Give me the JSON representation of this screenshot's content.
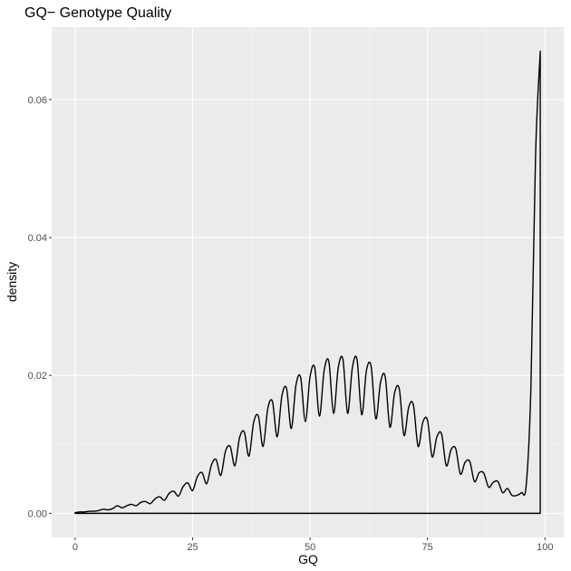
{
  "chart_data": {
    "type": "area",
    "title": "GQ− Genotype Quality",
    "xlabel": "GQ",
    "ylabel": "density",
    "xlim": [
      -5,
      104
    ],
    "ylim": [
      -0.0035,
      0.0705
    ],
    "x_ticks": [
      0,
      25,
      50,
      75,
      100
    ],
    "x_tick_labels": [
      "0",
      "25",
      "50",
      "75",
      "100"
    ],
    "y_ticks": [
      0.0,
      0.02,
      0.04,
      0.06
    ],
    "y_tick_labels": [
      "0.00",
      "0.02",
      "0.04",
      "0.06"
    ],
    "grid": true,
    "legend": "none",
    "series": [
      {
        "values_note": "",
        "x": [
          0,
          1,
          2,
          3,
          4,
          5,
          6,
          7,
          8,
          9,
          10,
          11,
          12,
          13,
          14,
          15,
          16,
          17,
          18,
          19,
          20,
          21,
          22,
          23,
          24,
          25,
          26,
          27,
          28,
          29,
          30,
          31,
          32,
          33,
          34,
          35,
          36,
          37,
          38,
          39,
          40,
          41,
          42,
          43,
          44,
          45,
          46,
          47,
          48,
          49,
          50,
          51,
          52,
          53,
          54,
          55,
          56,
          57,
          58,
          59,
          60,
          61,
          62,
          63,
          64,
          65,
          66,
          67,
          68,
          69,
          70,
          71,
          72,
          73,
          74,
          75,
          76,
          77,
          78,
          79,
          80,
          81,
          82,
          83,
          84,
          85,
          86,
          87,
          88,
          89,
          90,
          91,
          92,
          93,
          94,
          95,
          96,
          97,
          98,
          99
        ],
        "y": [
          0.0001,
          0.0002,
          0.0002,
          0.0003,
          0.0003,
          0.0004,
          0.0006,
          0.0005,
          0.0007,
          0.0011,
          0.0008,
          0.0011,
          0.0013,
          0.0011,
          0.0016,
          0.0017,
          0.0014,
          0.0021,
          0.0024,
          0.0019,
          0.0029,
          0.0032,
          0.0025,
          0.0039,
          0.0044,
          0.0033,
          0.0053,
          0.0059,
          0.0043,
          0.007,
          0.0078,
          0.0055,
          0.009,
          0.0097,
          0.0069,
          0.011,
          0.0118,
          0.0083,
          0.0132,
          0.0141,
          0.0097,
          0.0152,
          0.0162,
          0.0111,
          0.017,
          0.0181,
          0.0123,
          0.0186,
          0.0197,
          0.0133,
          0.0198,
          0.0211,
          0.0141,
          0.0207,
          0.022,
          0.0145,
          0.0211,
          0.0223,
          0.0145,
          0.0211,
          0.0223,
          0.0143,
          0.0207,
          0.0213,
          0.0137,
          0.019,
          0.0198,
          0.0125,
          0.0175,
          0.018,
          0.0113,
          0.0154,
          0.0157,
          0.0097,
          0.0132,
          0.0135,
          0.0082,
          0.0111,
          0.0115,
          0.0069,
          0.0092,
          0.0094,
          0.0057,
          0.0074,
          0.0075,
          0.0046,
          0.0059,
          0.0058,
          0.0038,
          0.0045,
          0.0046,
          0.003,
          0.0036,
          0.0026,
          0.0026,
          0.003,
          0.004,
          0.018,
          0.052,
          0.067
        ]
      }
    ]
  }
}
